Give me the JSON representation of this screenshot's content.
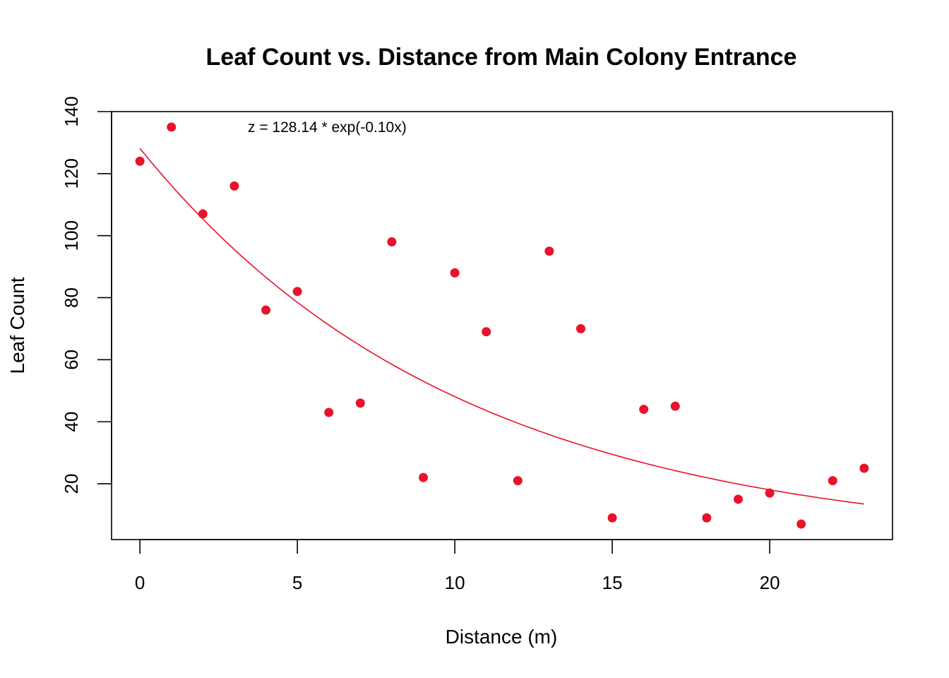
{
  "chart_data": {
    "type": "scatter",
    "title": "Leaf Count vs. Distance from Main Colony Entrance",
    "xlabel": "Distance (m)",
    "ylabel": "Leaf Count",
    "xlim": [
      -0.9,
      23.9
    ],
    "ylim": [
      2,
      140
    ],
    "x_ticks": [
      0,
      5,
      10,
      15,
      20
    ],
    "y_ticks": [
      20,
      40,
      60,
      80,
      100,
      120,
      140
    ],
    "grid": false,
    "legend": "none",
    "colors": {
      "points": "#e8132a",
      "fit_line": "#e8132a",
      "axes": "#000000"
    },
    "series": [
      {
        "x": [
          0,
          1,
          2,
          3,
          4,
          5,
          6,
          7,
          8,
          9,
          10,
          11,
          12,
          13,
          14,
          15,
          16,
          17,
          18,
          19,
          20,
          21,
          22,
          23
        ],
        "y": [
          124,
          135,
          107,
          116,
          76,
          82,
          43,
          46,
          98,
          22,
          88,
          69,
          21,
          95,
          70,
          9,
          44,
          45,
          9,
          15,
          17,
          7,
          21,
          25
        ]
      }
    ],
    "fit": {
      "type": "exponential",
      "a": 128.14,
      "b": -0.098,
      "x_range": [
        0,
        23
      ]
    },
    "annotation": "z = 128.14 * exp(-0.10x)"
  }
}
